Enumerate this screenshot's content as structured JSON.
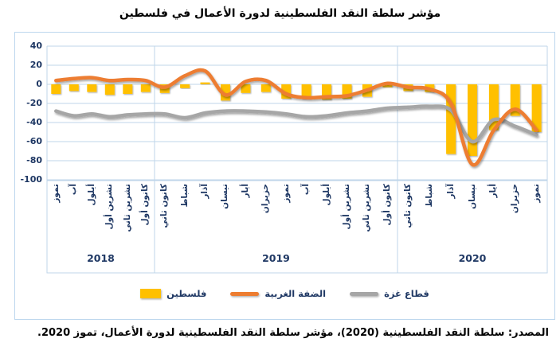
{
  "title": "مؤشر سلطة النقد الفلسطينية لدورة الأعمال في فلسطين",
  "source_note": "المصدر: سلطة النقد الفلسطينية (2020)، مؤشر سلطة النقد الفلسطينية لدورة الأعمال، تموز 2020.",
  "colors": {
    "bar_palestine": "#FFC000",
    "line_west_bank": "#ED7D31",
    "line_gaza": "#A6A6A6",
    "axis_text": "#1F3864",
    "gridline": "#BFD5EA",
    "border": "#BDD7EE"
  },
  "chart_data": {
    "type": "combo-bar-line",
    "title": "مؤشر سلطة النقد الفلسطينية لدورة الأعمال في فلسطين",
    "ylim": [
      -100,
      40
    ],
    "yticks": [
      40,
      20,
      0,
      -20,
      -40,
      -60,
      -80,
      -100
    ],
    "grid": true,
    "legend_position": "bottom",
    "year_groups": [
      {
        "year": "2018",
        "months": [
          "تموز",
          "آب",
          "أيلول",
          "تشرين أول",
          "تشرين ثاني",
          "كانون أول"
        ]
      },
      {
        "year": "2019",
        "months": [
          "كانون ثاني",
          "شباط",
          "آذار",
          "نيسان",
          "أيار",
          "حزيران",
          "تموز",
          "آب",
          "أيلول",
          "تشرين أول",
          "تشرين ثاني",
          "كانون أول"
        ]
      },
      {
        "year": "2020",
        "months": [
          "كانون ثاني",
          "شباط",
          "آذار",
          "نيسان",
          "أيار",
          "حزيران",
          "تموز"
        ]
      }
    ],
    "series": [
      {
        "name": "فلسطين",
        "type": "bar",
        "color": "#FFC000",
        "values": [
          -10,
          -7,
          -8,
          -11,
          -10,
          -8,
          -9,
          -4,
          2,
          -17,
          -9,
          -8,
          -15,
          -15,
          -16,
          -15,
          -13,
          -3,
          -7,
          -8,
          -73,
          -75,
          -48,
          -33,
          -50
        ]
      },
      {
        "name": "الضفة الغربية",
        "type": "line",
        "color": "#ED7D31",
        "values": [
          4,
          6,
          7,
          4,
          5,
          4,
          -3,
          9,
          14,
          -11,
          3,
          4,
          -10,
          -14,
          -13,
          -12,
          -6,
          1,
          -3,
          -5,
          -20,
          -84,
          -48,
          -26,
          -48
        ]
      },
      {
        "name": "قطاع غزة",
        "type": "line",
        "color": "#A6A6A6",
        "values": [
          -28,
          -33,
          -31,
          -34,
          -32,
          -31,
          -31,
          -35,
          -30,
          -28,
          -28,
          -29,
          -31,
          -34,
          -33,
          -30,
          -28,
          -25,
          -24,
          -23,
          -27,
          -60,
          -37,
          -44,
          -53
        ]
      }
    ]
  }
}
